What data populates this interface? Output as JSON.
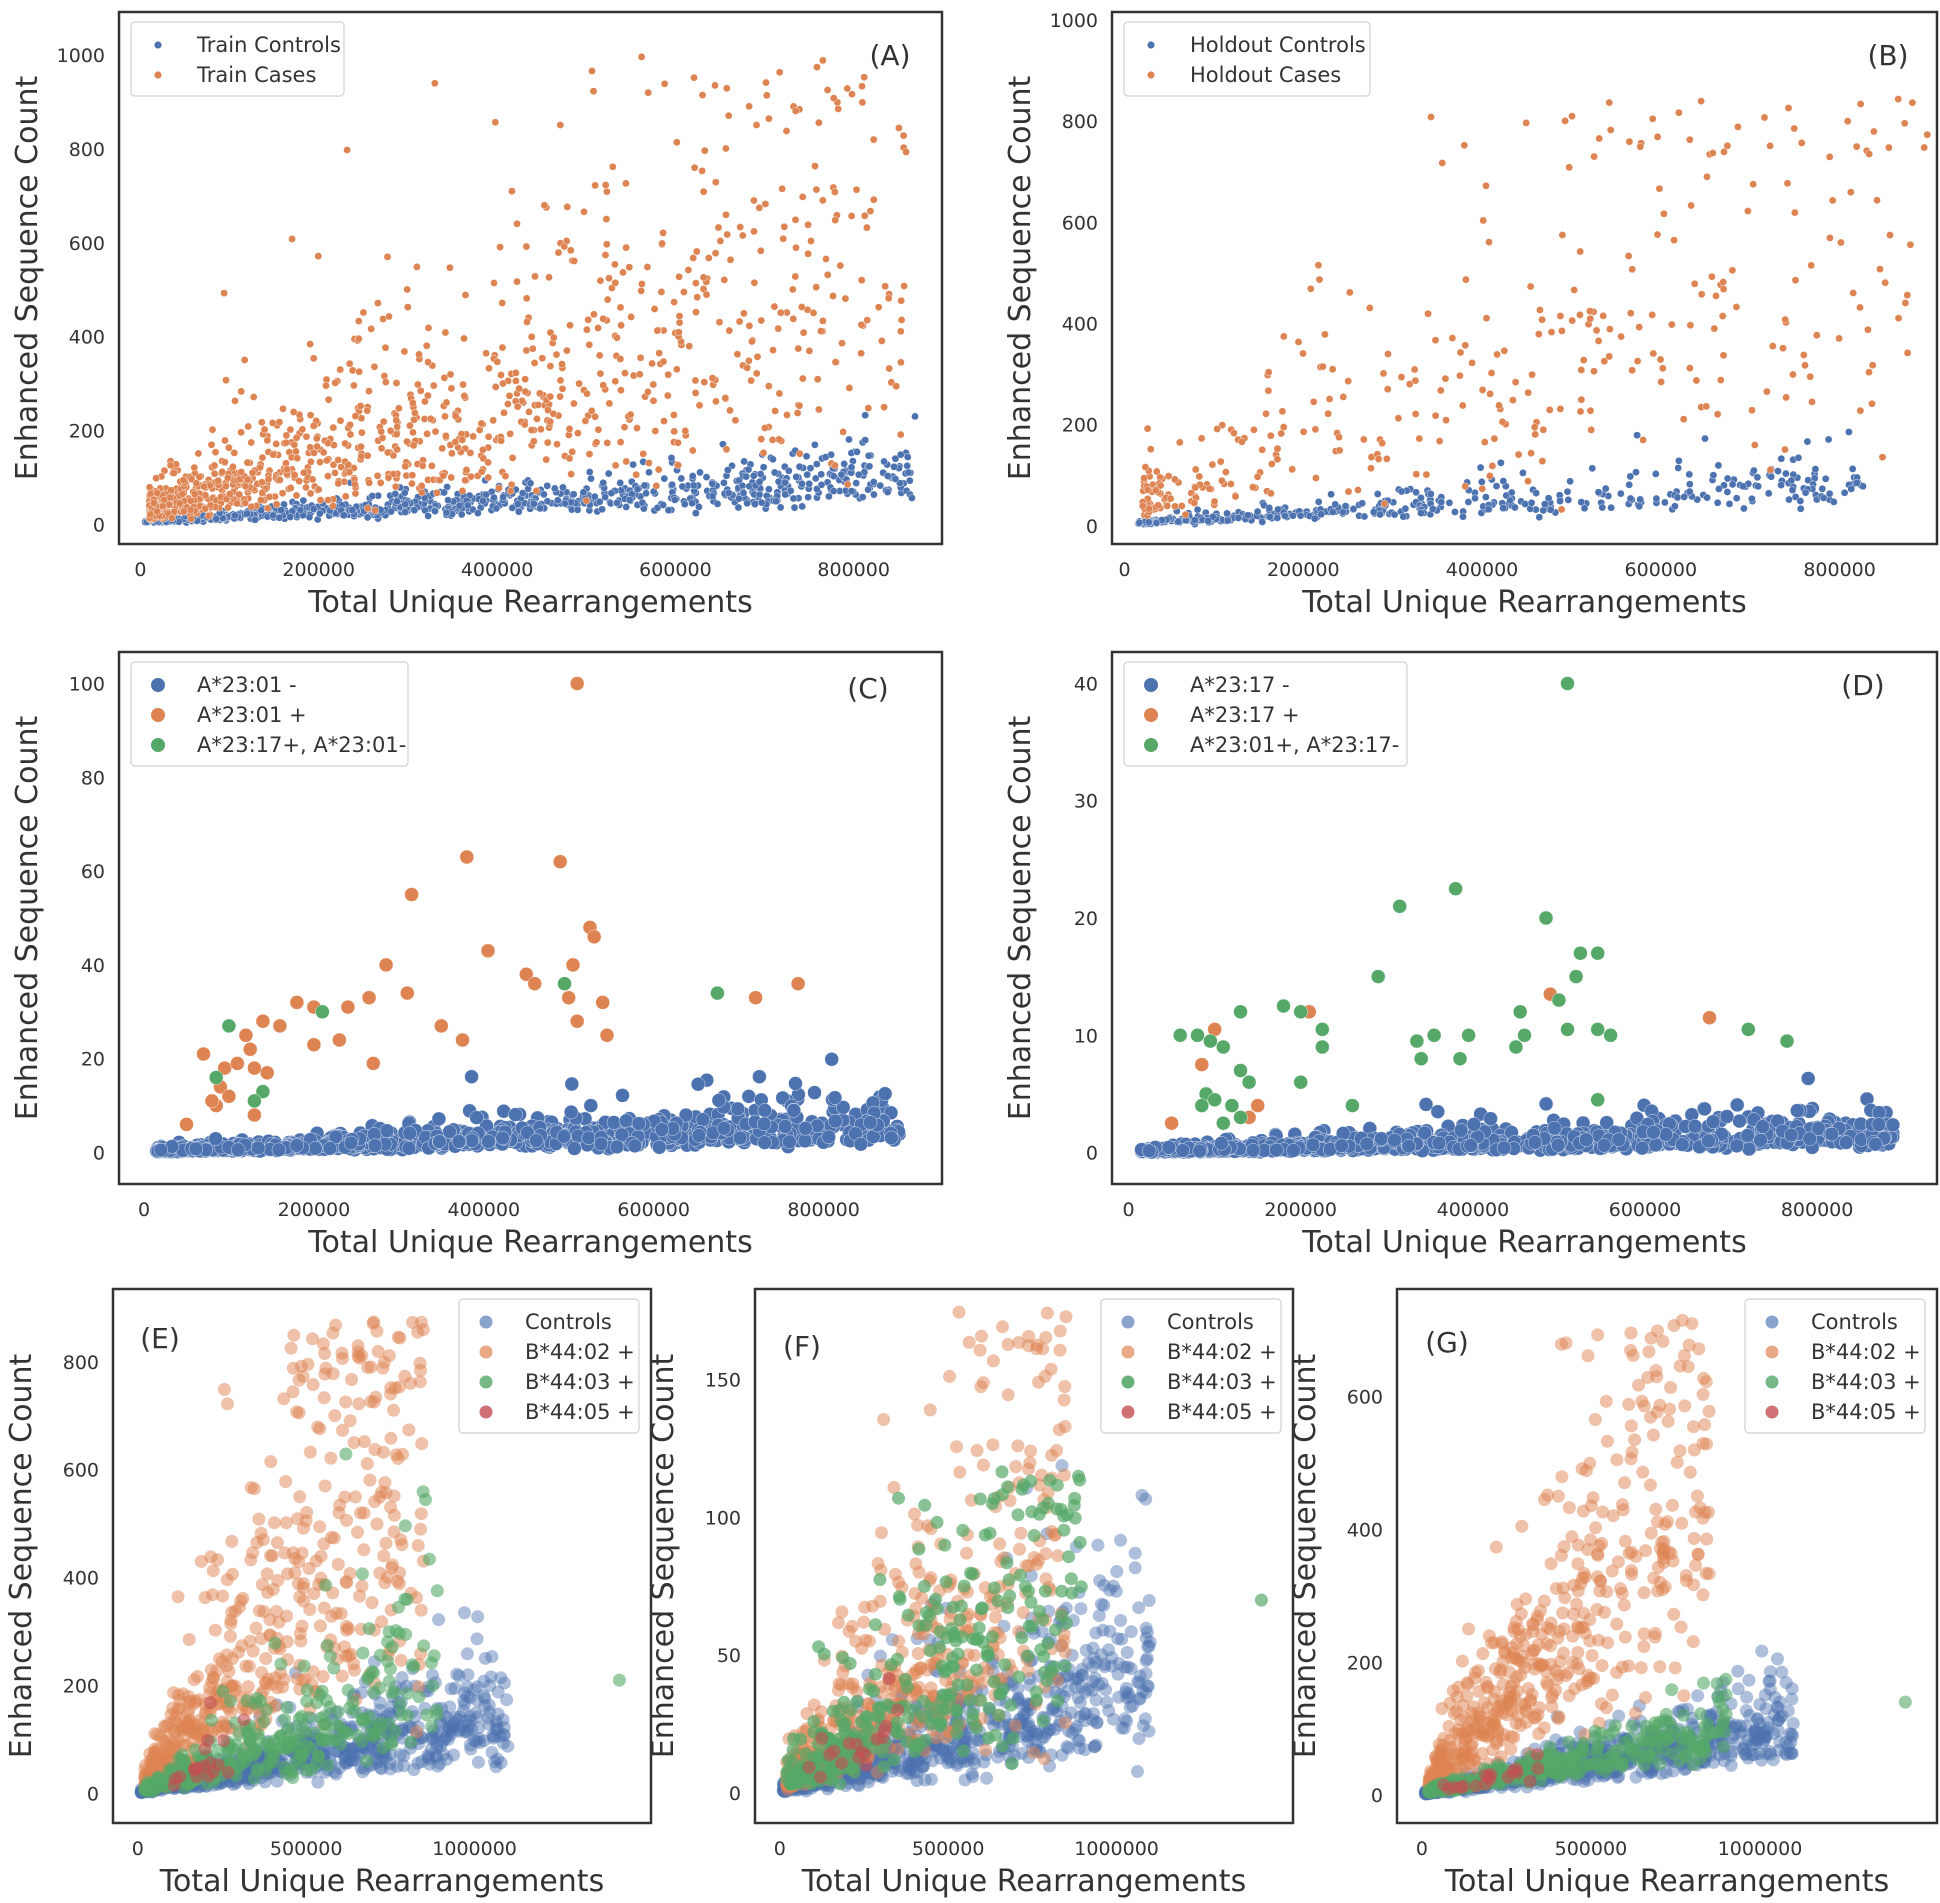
{
  "colors": {
    "blue": "#4c72b0",
    "orange": "#dd8452",
    "green": "#55a868",
    "red": "#c44e52"
  },
  "chart_data": [
    {
      "id": "A",
      "type": "scatter",
      "panel_label": "(A)",
      "xlabel": "Total Unique Rearrangements",
      "ylabel": "Enhanced Sequence Count",
      "xlim": [
        -15000,
        890000
      ],
      "ylim": [
        -25,
        1075
      ],
      "xticks": [
        0,
        200000,
        400000,
        600000,
        800000
      ],
      "yticks": [
        0,
        200,
        400,
        600,
        800,
        1000
      ],
      "legend": [
        "Train Controls",
        "Train Cases"
      ],
      "series": [
        {
          "name": "Train Controls",
          "color": "blue",
          "gen": {
            "n": 900,
            "x0": 5000,
            "x1": 870000,
            "slope": 0.000118,
            "icpt": 5,
            "noise": 0.35,
            "skew": 1.35
          }
        },
        {
          "name": "Train Cases",
          "color": "orange",
          "gen": {
            "n": 1100,
            "x0": 10000,
            "x1": 860000,
            "slope": 0.00068,
            "icpt": 30,
            "noise": 0.55,
            "skew": 1.6,
            "ymax": 1000
          }
        }
      ]
    },
    {
      "id": "B",
      "type": "scatter",
      "panel_label": "(B)",
      "xlabel": "Total Unique Rearrangements",
      "ylabel": "Enhanced Sequence Count",
      "xlim": [
        -5000,
        900000
      ],
      "ylim": [
        -20,
        1000
      ],
      "xticks": [
        0,
        200000,
        400000,
        600000,
        800000
      ],
      "yticks": [
        0,
        200,
        400,
        600,
        800,
        1000
      ],
      "legend": [
        "Holdout Controls",
        "Holdout Cases"
      ],
      "series": [
        {
          "name": "Holdout Controls",
          "color": "blue",
          "gen": {
            "n": 420,
            "x0": 15000,
            "x1": 830000,
            "slope": 0.000112,
            "icpt": 4,
            "noise": 0.35,
            "skew": 1.4
          }
        },
        {
          "name": "Holdout Cases",
          "color": "orange",
          "gen": {
            "n": 360,
            "x0": 20000,
            "x1": 900000,
            "slope": 0.00072,
            "icpt": 40,
            "noise": 0.55,
            "skew": 1.4,
            "ymax": 850
          }
        }
      ]
    },
    {
      "id": "C",
      "type": "scatter",
      "panel_label": "(C)",
      "xlabel": "Total Unique Rearrangements",
      "ylabel": "Enhanced Sequence Count",
      "xlim": [
        -20000,
        930000
      ],
      "ylim": [
        -5,
        105
      ],
      "xticks": [
        0,
        200000,
        400000,
        600000,
        800000
      ],
      "yticks": [
        0,
        20,
        40,
        60,
        80,
        100
      ],
      "legend": [
        "A*23:01 -",
        "A*23:01 +",
        "A*23:17+, A*23:01-"
      ],
      "series": [
        {
          "name": "A*23:01 -",
          "color": "blue",
          "gen": {
            "n": 1100,
            "x0": 15000,
            "x1": 890000,
            "slope": 6.8e-06,
            "icpt": 0.3,
            "noise": 0.5,
            "skew": 1.5
          }
        },
        {
          "name": "A*23:01 +",
          "color": "orange",
          "points": [
            [
              510000,
              100
            ],
            [
              380000,
              63
            ],
            [
              490000,
              62
            ],
            [
              315000,
              55
            ],
            [
              525000,
              48
            ],
            [
              530000,
              46
            ],
            [
              405000,
              43
            ],
            [
              505000,
              40
            ],
            [
              285000,
              40
            ],
            [
              310000,
              34
            ],
            [
              450000,
              38
            ],
            [
              460000,
              36
            ],
            [
              500000,
              33
            ],
            [
              540000,
              32
            ],
            [
              720000,
              33
            ],
            [
              770000,
              36
            ],
            [
              180000,
              32
            ],
            [
              200000,
              31
            ],
            [
              240000,
              31
            ],
            [
              265000,
              33
            ],
            [
              350000,
              27
            ],
            [
              375000,
              24
            ],
            [
              510000,
              28
            ],
            [
              545000,
              25
            ],
            [
              160000,
              27
            ],
            [
              120000,
              25
            ],
            [
              125000,
              22
            ],
            [
              140000,
              28
            ],
            [
              200000,
              23
            ],
            [
              230000,
              24
            ],
            [
              270000,
              19
            ],
            [
              95000,
              18
            ],
            [
              110000,
              19
            ],
            [
              130000,
              18
            ],
            [
              145000,
              17
            ],
            [
              90000,
              14
            ],
            [
              100000,
              12
            ],
            [
              85000,
              10
            ],
            [
              130000,
              8
            ],
            [
              50000,
              6
            ],
            [
              70000,
              21
            ],
            [
              80000,
              11
            ]
          ]
        },
        {
          "name": "A*23:17+, A*23:01-",
          "color": "green",
          "points": [
            [
              100000,
              27
            ],
            [
              210000,
              30
            ],
            [
              495000,
              36
            ],
            [
              675000,
              34
            ],
            [
              85000,
              16
            ],
            [
              140000,
              13
            ],
            [
              130000,
              11
            ]
          ]
        }
      ]
    },
    {
      "id": "D",
      "type": "scatter",
      "panel_label": "(D)",
      "xlabel": "Total Unique Rearrangements",
      "ylabel": "Enhanced Sequence Count",
      "xlim": [
        -10000,
        930000
      ],
      "ylim": [
        -2,
        42
      ],
      "xticks": [
        0,
        200000,
        400000,
        600000,
        800000
      ],
      "yticks": [
        0,
        10,
        20,
        30,
        40
      ],
      "legend": [
        "A*23:17 -",
        "A*23:17 +",
        "A*23:01+, A*23:17-"
      ],
      "series": [
        {
          "name": "A*23:17 -",
          "color": "blue",
          "gen": {
            "n": 1100,
            "x0": 15000,
            "x1": 890000,
            "slope": 2.2e-06,
            "icpt": 0.1,
            "noise": 0.6,
            "skew": 1.6
          }
        },
        {
          "name": "A*23:17 +",
          "color": "orange",
          "points": [
            [
              50000,
              2.5
            ],
            [
              85000,
              7.5
            ],
            [
              100000,
              10.5
            ],
            [
              150000,
              4
            ],
            [
              210000,
              12
            ],
            [
              140000,
              3
            ],
            [
              490000,
              13.5
            ],
            [
              675000,
              11.5
            ]
          ]
        },
        {
          "name": "A*23:01+, A*23:17-",
          "color": "green",
          "points": [
            [
              510000,
              40
            ],
            [
              380000,
              22.5
            ],
            [
              315000,
              21
            ],
            [
              485000,
              20
            ],
            [
              525000,
              17
            ],
            [
              545000,
              17
            ],
            [
              520000,
              15
            ],
            [
              290000,
              15
            ],
            [
              355000,
              10
            ],
            [
              335000,
              9.5
            ],
            [
              395000,
              10
            ],
            [
              455000,
              12
            ],
            [
              460000,
              10
            ],
            [
              500000,
              13
            ],
            [
              510000,
              10.5
            ],
            [
              545000,
              10.5
            ],
            [
              560000,
              10
            ],
            [
              200000,
              12
            ],
            [
              180000,
              12.5
            ],
            [
              225000,
              10.5
            ],
            [
              130000,
              12
            ],
            [
              95000,
              9.5
            ],
            [
              110000,
              9
            ],
            [
              60000,
              10
            ],
            [
              80000,
              10
            ],
            [
              140000,
              6
            ],
            [
              130000,
              7
            ],
            [
              90000,
              5
            ],
            [
              100000,
              4.5
            ],
            [
              120000,
              4
            ],
            [
              85000,
              4
            ],
            [
              110000,
              2.5
            ],
            [
              130000,
              3
            ],
            [
              200000,
              6
            ],
            [
              225000,
              9
            ],
            [
              260000,
              4
            ],
            [
              340000,
              8
            ],
            [
              385000,
              8
            ],
            [
              450000,
              9
            ],
            [
              545000,
              4.5
            ],
            [
              720000,
              10.5
            ],
            [
              765000,
              9.5
            ]
          ]
        }
      ]
    },
    {
      "id": "E",
      "type": "scatter",
      "panel_label": "(E)",
      "xlabel": "Total Unique Rearrangements",
      "ylabel": "Enhanced Sequence Count",
      "xlim": [
        -50000,
        1500000
      ],
      "ylim": [
        -40,
        920
      ],
      "xticks": [
        0,
        500000,
        1000000
      ],
      "yticks": [
        0,
        200,
        400,
        600,
        800
      ],
      "legend": [
        "Controls",
        "B*44:02 +",
        "B*44:03 +",
        "B*44:05 +"
      ],
      "series": [
        {
          "name": "Controls",
          "color": "blue",
          "alpha": 0.45,
          "gen": {
            "n": 700,
            "x0": 10000,
            "x1": 1100000,
            "slope": 0.000145,
            "icpt": 2,
            "noise": 0.4,
            "skew": 1.4
          }
        },
        {
          "name": "B*44:02 +",
          "color": "orange",
          "alpha": 0.5,
          "gen": {
            "n": 500,
            "x0": 20000,
            "x1": 850000,
            "slope": 0.00085,
            "icpt": 10,
            "noise": 0.5,
            "skew": 1.2,
            "ymax": 880
          }
        },
        {
          "name": "B*44:03 +",
          "color": "green",
          "alpha": 0.6,
          "gen": {
            "n": 320,
            "x0": 20000,
            "x1": 900000,
            "slope": 0.00024,
            "icpt": 5,
            "noise": 0.45,
            "skew": 1.3
          },
          "extra": [
            [
              1430000,
              210
            ],
            [
              880000,
              255
            ]
          ]
        },
        {
          "name": "B*44:05 +",
          "color": "red",
          "alpha": 0.6,
          "gen": {
            "n": 18,
            "x0": 60000,
            "x1": 350000,
            "slope": 0.00022,
            "icpt": 5,
            "noise": 0.4,
            "skew": 1
          }
        }
      ]
    },
    {
      "id": "F",
      "type": "scatter",
      "panel_label": "(F)",
      "xlabel": "Total Unique Rearrangements",
      "ylabel": "Enhanced Sequence Count",
      "xlim": [
        -50000,
        1500000
      ],
      "ylim": [
        -8,
        180
      ],
      "xticks": [
        0,
        500000,
        1000000
      ],
      "yticks": [
        0,
        50,
        100,
        150
      ],
      "legend": [
        "Controls",
        "B*44:02 +",
        "B*44:03 +",
        "B*44:05 +"
      ],
      "series": [
        {
          "name": "Controls",
          "color": "blue",
          "alpha": 0.45,
          "gen": {
            "n": 700,
            "x0": 10000,
            "x1": 1100000,
            "slope": 4.2e-05,
            "icpt": 1,
            "noise": 0.5,
            "skew": 1.3,
            "ymax": 125
          }
        },
        {
          "name": "B*44:02 +",
          "color": "orange",
          "alpha": 0.5,
          "gen": {
            "n": 500,
            "x0": 20000,
            "x1": 850000,
            "slope": 0.00012,
            "icpt": 3,
            "noise": 0.55,
            "skew": 1.3,
            "ymax": 175
          }
        },
        {
          "name": "B*44:03 +",
          "color": "green",
          "alpha": 0.7,
          "gen": {
            "n": 320,
            "x0": 20000,
            "x1": 900000,
            "slope": 0.0001,
            "icpt": 3,
            "noise": 0.55,
            "skew": 1.3,
            "ymax": 118
          },
          "extra": [
            [
              1430000,
              70
            ]
          ]
        },
        {
          "name": "B*44:05 +",
          "color": "red",
          "alpha": 0.6,
          "gen": {
            "n": 18,
            "x0": 60000,
            "x1": 350000,
            "slope": 7e-05,
            "icpt": 2,
            "noise": 0.4,
            "skew": 1
          }
        }
      ]
    },
    {
      "id": "G",
      "type": "scatter",
      "panel_label": "(G)",
      "xlabel": "Total Unique Rearrangements",
      "ylabel": "Enhanced Sequence Count",
      "xlim": [
        -50000,
        1500000
      ],
      "ylim": [
        -30,
        750
      ],
      "xticks": [
        0,
        500000,
        1000000
      ],
      "yticks": [
        0,
        200,
        400,
        600
      ],
      "legend": [
        "Controls",
        "B*44:02 +",
        "B*44:03 +",
        "B*44:05 +"
      ],
      "series": [
        {
          "name": "Controls",
          "color": "blue",
          "alpha": 0.45,
          "gen": {
            "n": 700,
            "x0": 10000,
            "x1": 1100000,
            "slope": 9.8e-05,
            "icpt": 2,
            "noise": 0.35,
            "skew": 1.4
          }
        },
        {
          "name": "B*44:02 +",
          "color": "orange",
          "alpha": 0.5,
          "gen": {
            "n": 500,
            "x0": 20000,
            "x1": 850000,
            "slope": 0.00062,
            "icpt": 10,
            "noise": 0.45,
            "skew": 1.2,
            "ymax": 720
          }
        },
        {
          "name": "B*44:03 +",
          "color": "green",
          "alpha": 0.6,
          "gen": {
            "n": 320,
            "x0": 20000,
            "x1": 900000,
            "slope": 0.000112,
            "icpt": 4,
            "noise": 0.3,
            "skew": 1.3
          },
          "extra": [
            [
              1430000,
              140
            ],
            [
              880000,
              140
            ]
          ]
        },
        {
          "name": "B*44:05 +",
          "color": "red",
          "alpha": 0.6,
          "gen": {
            "n": 18,
            "x0": 60000,
            "x1": 350000,
            "slope": 0.0001,
            "icpt": 4,
            "noise": 0.3,
            "skew": 1
          }
        }
      ]
    }
  ]
}
